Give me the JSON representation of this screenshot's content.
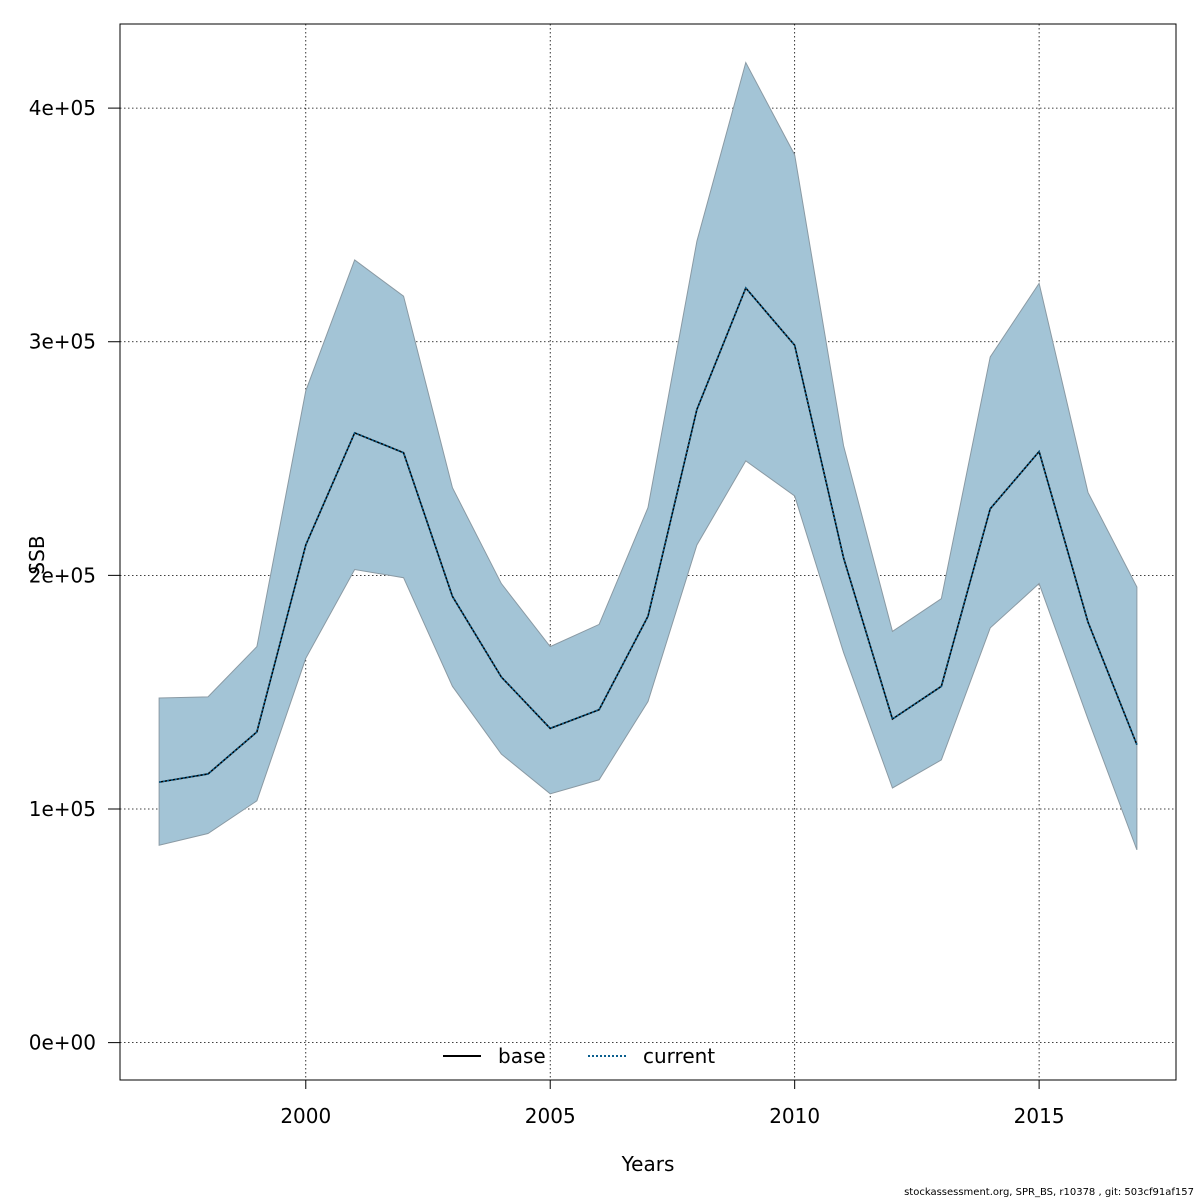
{
  "chart_data": {
    "type": "line",
    "xlabel": "Years",
    "ylabel": "SSB",
    "xlim": [
      1996.2,
      2017.8
    ],
    "ylim": [
      -16000,
      436000
    ],
    "x_ticks": [
      2000,
      2005,
      2010,
      2015
    ],
    "y_ticks": [
      0,
      100000,
      200000,
      300000,
      400000
    ],
    "y_tick_labels": [
      "0e+00",
      "1e+05",
      "2e+05",
      "3e+05",
      "4e+05"
    ],
    "grid": true,
    "legend_position": "bottom-center",
    "x": [
      1997,
      1998,
      1999,
      2000,
      2001,
      2002,
      2003,
      2004,
      2005,
      2006,
      2007,
      2008,
      2009,
      2010,
      2011,
      2012,
      2013,
      2014,
      2015,
      2016,
      2017
    ],
    "series": [
      {
        "name": "base",
        "style": "solid",
        "color": "#000000",
        "values": [
          111500,
          115000,
          133000,
          213000,
          261000,
          252500,
          191000,
          156500,
          134500,
          142500,
          182500,
          271000,
          323000,
          298500,
          207500,
          138500,
          152500,
          228500,
          253000,
          180000,
          127500
        ]
      },
      {
        "name": "current",
        "style": "dotted",
        "color": "#0a5f8e",
        "values": [
          111500,
          115000,
          133000,
          213000,
          261000,
          252500,
          191000,
          156500,
          134500,
          142500,
          182500,
          271000,
          323000,
          298500,
          207500,
          138500,
          152500,
          228500,
          253000,
          180000,
          127500
        ]
      }
    ],
    "band": {
      "color": "#a3c4d6",
      "upper": [
        147500,
        148000,
        169500,
        279000,
        335000,
        319500,
        237500,
        196500,
        169500,
        179000,
        229000,
        343000,
        419500,
        380000,
        255500,
        176000,
        190000,
        293500,
        325000,
        235500,
        195000
      ],
      "lower": [
        84500,
        89500,
        103500,
        164500,
        202500,
        199000,
        152500,
        123500,
        106500,
        112500,
        146000,
        213000,
        249000,
        234000,
        167000,
        109000,
        121000,
        177500,
        196500,
        138500,
        82500
      ]
    }
  },
  "footer_text": "stockassessment.org, SPR_BS, r10378 , git: 503cf91af157"
}
